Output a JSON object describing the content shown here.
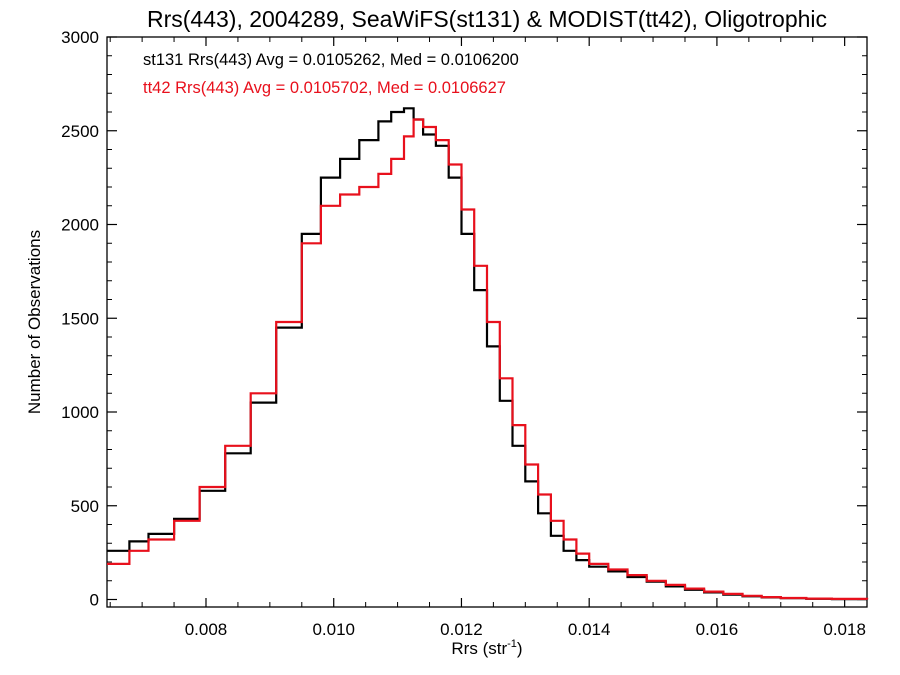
{
  "chart_data": {
    "type": "line",
    "title": "Rrs(443), 2004289, SeaWiFS(st131) & MODIST(tt42), Oligotrophic",
    "xlabel": "Rrs (str",
    "xlabel_superscript": "-1",
    "xlabel_suffix": ")",
    "ylabel": "Number of Observations",
    "xlim": [
      0.00645,
      0.01835
    ],
    "ylim": [
      -40,
      3000
    ],
    "x_ticks": [
      0.008,
      0.01,
      0.012,
      0.014,
      0.016,
      0.018
    ],
    "x_tick_labels": [
      "0.008",
      "0.010",
      "0.012",
      "0.014",
      "0.016",
      "0.018"
    ],
    "y_ticks": [
      0,
      500,
      1000,
      1500,
      2000,
      2500,
      3000
    ],
    "y_tick_labels": [
      "0",
      "500",
      "1000",
      "1500",
      "2000",
      "2500",
      "3000"
    ],
    "grid": false,
    "legend_position": "top-left",
    "annotations": [
      {
        "text": "st131 Rrs(443) Avg = 0.0105262, Med = 0.0106200",
        "color": "#000000"
      },
      {
        "text": "tt42 Rrs(443) Avg = 0.0105702, Med = 0.0106627",
        "color": "#e8101c"
      }
    ],
    "series": [
      {
        "color": "#000000",
        "x": [
          0.00645,
          0.0068,
          0.0071,
          0.0075,
          0.0079,
          0.0083,
          0.0087,
          0.0091,
          0.0095,
          0.0098,
          0.0101,
          0.0104,
          0.0107,
          0.0109,
          0.0111,
          0.01125,
          0.0114,
          0.0116,
          0.0118,
          0.012,
          0.0122,
          0.0124,
          0.0126,
          0.0128,
          0.013,
          0.0132,
          0.0134,
          0.0136,
          0.0138,
          0.014,
          0.0143,
          0.0146,
          0.0149,
          0.0152,
          0.0155,
          0.0158,
          0.0161,
          0.0164,
          0.0167,
          0.017,
          0.0174,
          0.0178,
          0.01835
        ],
        "values": [
          260,
          310,
          350,
          430,
          580,
          780,
          1050,
          1450,
          1950,
          2250,
          2350,
          2450,
          2550,
          2600,
          2620,
          2560,
          2480,
          2420,
          2250,
          1950,
          1650,
          1350,
          1060,
          820,
          630,
          460,
          340,
          260,
          210,
          175,
          150,
          120,
          95,
          70,
          52,
          38,
          26,
          17,
          11,
          7,
          4,
          2,
          0
        ]
      },
      {
        "color": "#e8101c",
        "x": [
          0.00645,
          0.0068,
          0.0071,
          0.0075,
          0.0079,
          0.0083,
          0.0087,
          0.0091,
          0.0095,
          0.0098,
          0.0101,
          0.0104,
          0.0107,
          0.0109,
          0.0111,
          0.01125,
          0.0114,
          0.0116,
          0.0118,
          0.012,
          0.0122,
          0.0124,
          0.0126,
          0.0128,
          0.013,
          0.0132,
          0.0134,
          0.0136,
          0.0138,
          0.014,
          0.0143,
          0.0146,
          0.0149,
          0.0152,
          0.0155,
          0.0158,
          0.0161,
          0.0164,
          0.0167,
          0.017,
          0.0174,
          0.0178,
          0.01835
        ],
        "values": [
          190,
          260,
          320,
          420,
          600,
          820,
          1100,
          1480,
          1900,
          2100,
          2160,
          2200,
          2270,
          2350,
          2470,
          2560,
          2520,
          2450,
          2320,
          2080,
          1780,
          1480,
          1180,
          930,
          720,
          560,
          420,
          320,
          245,
          190,
          160,
          130,
          100,
          78,
          58,
          42,
          30,
          20,
          13,
          8,
          5,
          3,
          0
        ]
      }
    ]
  }
}
